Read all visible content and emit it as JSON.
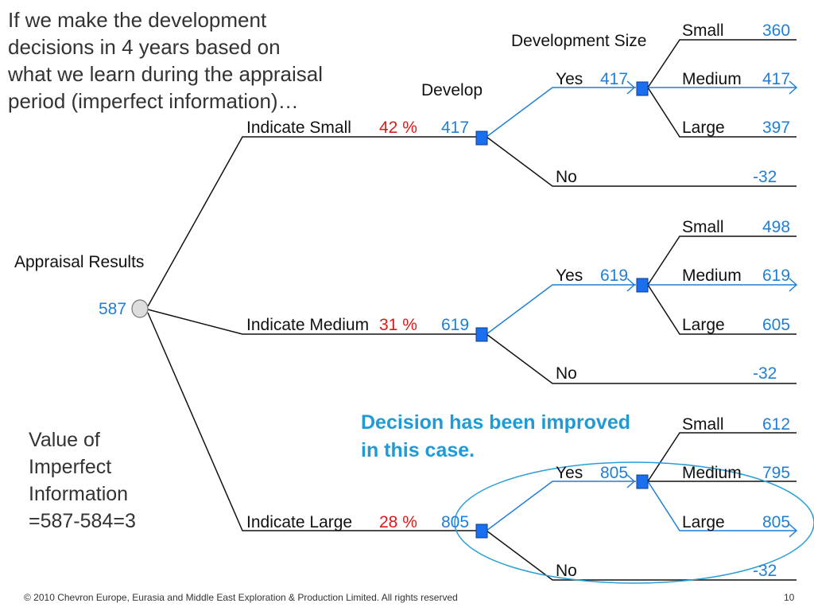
{
  "intro_text": "If we make the development decisions in 4 years based on what we learn during the appraisal period (imperfect information)…",
  "labels": {
    "appraisal_results": "Appraisal Results",
    "root_value": "587",
    "develop": "Develop",
    "development_size": "Development Size",
    "yes": "Yes",
    "no": "No",
    "small": "Small",
    "medium": "Medium",
    "large": "Large"
  },
  "branches": [
    {
      "indication": "Indicate Small",
      "probability": "42 %",
      "value": "417",
      "yes_value": "417",
      "no_value": "-32",
      "sizes": {
        "small": "360",
        "medium": "417",
        "large": "397"
      }
    },
    {
      "indication": "Indicate Medium",
      "probability": "31 %",
      "value": "619",
      "yes_value": "619",
      "no_value": "-32",
      "sizes": {
        "small": "498",
        "medium": "619",
        "large": "605"
      }
    },
    {
      "indication": "Indicate Large",
      "probability": "28 %",
      "value": "805",
      "yes_value": "805",
      "no_value": "-32",
      "sizes": {
        "small": "612",
        "medium": "795",
        "large": "805"
      }
    }
  ],
  "value_of_information": [
    "Value of",
    "Imperfect",
    "Information",
    "=587-584=3"
  ],
  "highlight_note": "Decision has been improved in this case.",
  "footer": "© 2010 Chevron Europe, Eurasia and Middle East Exploration & Production Limited.  All rights reserved",
  "page_number": "10",
  "colors": {
    "accent_blue": "#1f7fd6",
    "note_blue": "#1e9bd7",
    "probability_red": "#e01818",
    "decision_node": "#1a6ff0"
  }
}
